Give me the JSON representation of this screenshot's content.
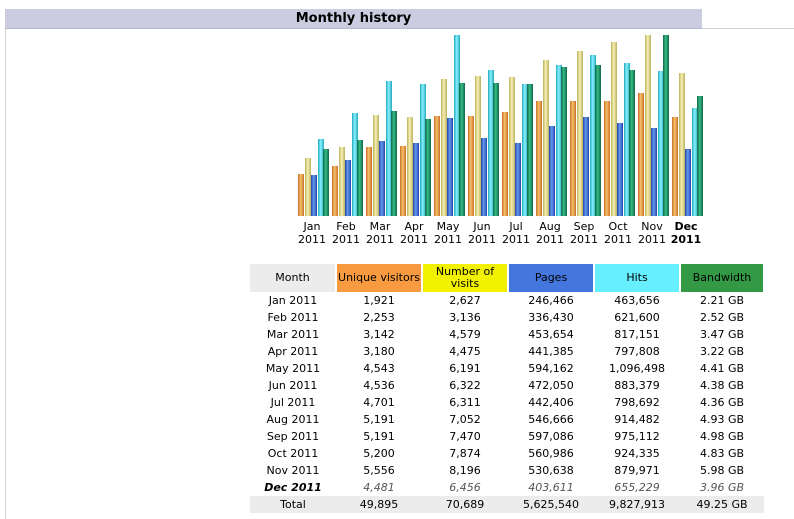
{
  "title": "Monthly history",
  "colors": {
    "unique_visitors": "#f0a040",
    "visits": "#e8e090",
    "pages": "#4477dd",
    "hits": "#55ddee",
    "bandwidth": "#229966",
    "header_bg": "#cccce0"
  },
  "chart_data": {
    "type": "bar",
    "title": "",
    "categories": [
      "Jan",
      "Feb",
      "Mar",
      "Apr",
      "May",
      "Jun",
      "Jul",
      "Aug",
      "Sep",
      "Oct",
      "Nov",
      "Dec"
    ],
    "years": [
      "2011",
      "2011",
      "2011",
      "2011",
      "2011",
      "2011",
      "2011",
      "2011",
      "2011",
      "2011",
      "2011",
      "2011"
    ],
    "current_index": 11,
    "series": [
      {
        "name": "Unique visitors",
        "values": [
          1921,
          2253,
          3142,
          3180,
          4543,
          4536,
          4701,
          5191,
          5191,
          5200,
          5556,
          4481
        ]
      },
      {
        "name": "Number of visits",
        "values": [
          2627,
          3136,
          4579,
          4475,
          6191,
          6322,
          6311,
          7052,
          7470,
          7874,
          8196,
          6456
        ]
      },
      {
        "name": "Pages",
        "values": [
          246466,
          336430,
          453654,
          441385,
          594162,
          472050,
          442406,
          546666,
          597086,
          560986,
          530638,
          403611
        ]
      },
      {
        "name": "Hits",
        "values": [
          463656,
          621600,
          817151,
          797808,
          1096498,
          883379,
          798692,
          914482,
          975112,
          924335,
          879971,
          655229
        ]
      },
      {
        "name": "Bandwidth",
        "values": [
          2.21,
          2.52,
          3.47,
          3.22,
          4.41,
          4.38,
          4.36,
          4.93,
          4.98,
          4.83,
          5.98,
          3.96
        ]
      }
    ]
  },
  "table": {
    "headers": [
      "Month",
      "Unique visitors",
      "Number of visits",
      "Pages",
      "Hits",
      "Bandwidth"
    ],
    "rows": [
      [
        "Jan 2011",
        "1,921",
        "2,627",
        "246,466",
        "463,656",
        "2.21 GB"
      ],
      [
        "Feb 2011",
        "2,253",
        "3,136",
        "336,430",
        "621,600",
        "2.52 GB"
      ],
      [
        "Mar 2011",
        "3,142",
        "4,579",
        "453,654",
        "817,151",
        "3.47 GB"
      ],
      [
        "Apr 2011",
        "3,180",
        "4,475",
        "441,385",
        "797,808",
        "3.22 GB"
      ],
      [
        "May 2011",
        "4,543",
        "6,191",
        "594,162",
        "1,096,498",
        "4.41 GB"
      ],
      [
        "Jun 2011",
        "4,536",
        "6,322",
        "472,050",
        "883,379",
        "4.38 GB"
      ],
      [
        "Jul 2011",
        "4,701",
        "6,311",
        "442,406",
        "798,692",
        "4.36 GB"
      ],
      [
        "Aug 2011",
        "5,191",
        "7,052",
        "546,666",
        "914,482",
        "4.93 GB"
      ],
      [
        "Sep 2011",
        "5,191",
        "7,470",
        "597,086",
        "975,112",
        "4.98 GB"
      ],
      [
        "Oct 2011",
        "5,200",
        "7,874",
        "560,986",
        "924,335",
        "4.83 GB"
      ],
      [
        "Nov 2011",
        "5,556",
        "8,196",
        "530,638",
        "879,971",
        "5.98 GB"
      ],
      [
        "Dec 2011",
        "4,481",
        "6,456",
        "403,611",
        "655,229",
        "3.96 GB"
      ]
    ],
    "total": [
      "Total",
      "49,895",
      "70,689",
      "5,625,540",
      "9,827,913",
      "49.25 GB"
    ]
  }
}
